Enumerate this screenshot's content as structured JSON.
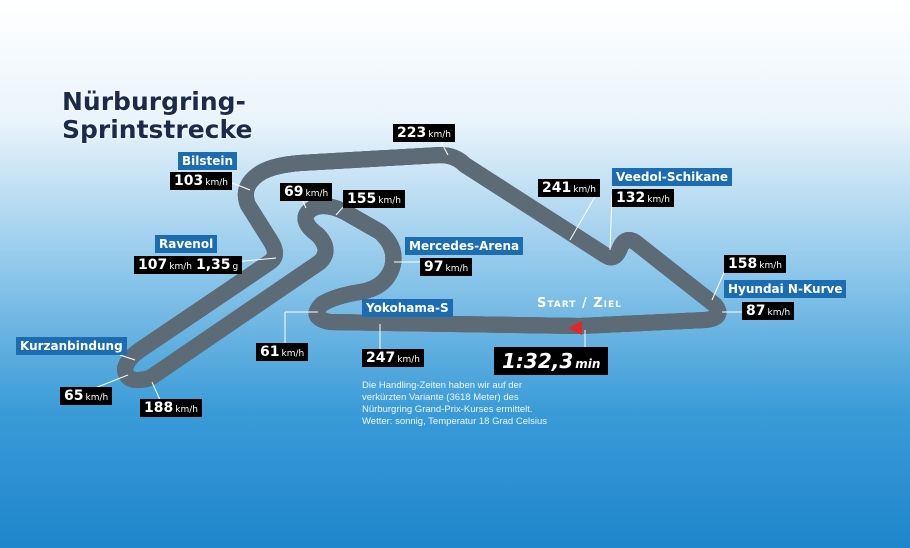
{
  "title": {
    "line1": "Nürburgring-",
    "line2": "Sprintstrecke"
  },
  "speed_unit": "km/h",
  "corner_names": [
    "Bilstein",
    "Ravenol",
    "Kurzanbindung",
    "Mercedes-Arena",
    "Yokohama-S",
    "Veedol-Schikane",
    "Hyundai N-Kurve"
  ],
  "speeds": [
    103,
    107,
    65,
    188,
    69,
    155,
    97,
    61,
    247,
    223,
    241,
    132,
    158,
    87
  ],
  "g_force": {
    "value": "1,35",
    "unit": "g"
  },
  "start_finish": "Start / Ziel",
  "lap_time": {
    "value": "1:32,3",
    "unit": "min"
  },
  "note": [
    "Die Handling-Zeiten haben wir auf der",
    "verkürzten Variante (3618 Meter) des",
    "Nürburgring Grand-Prix-Kurses ermittelt.",
    "Wetter: sonnig, Temperatur 18 Grad Celsius"
  ]
}
